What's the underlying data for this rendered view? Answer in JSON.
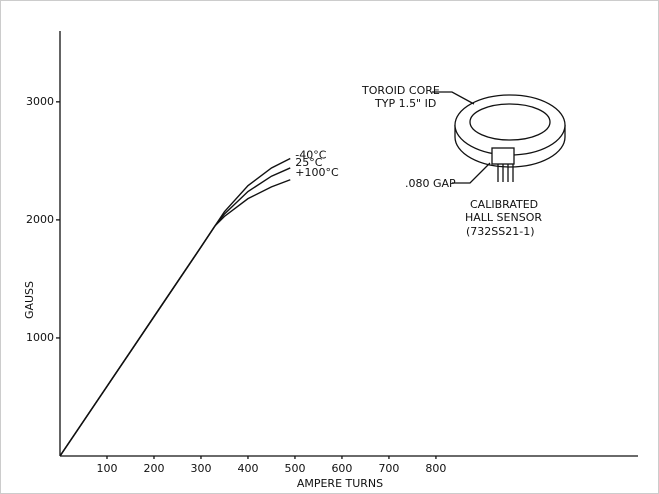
{
  "chart_data": {
    "type": "line",
    "x_label": "AMPERE TURNS",
    "y_label": "GAUSS",
    "x": [
      0,
      100,
      200,
      300,
      330,
      350,
      400,
      450,
      490
    ],
    "series": [
      {
        "name": "-40°C",
        "color": "#111111",
        "values": [
          0,
          590,
          1180,
          1770,
          1950,
          2070,
          2290,
          2440,
          2520
        ]
      },
      {
        "name": "25°C",
        "color": "#111111",
        "values": [
          0,
          590,
          1180,
          1770,
          1950,
          2050,
          2240,
          2370,
          2440
        ]
      },
      {
        "name": "+100°C",
        "color": "#111111",
        "values": [
          0,
          590,
          1180,
          1770,
          1950,
          2030,
          2180,
          2280,
          2340
        ]
      }
    ],
    "xlim": [
      0,
      1230
    ],
    "ylim": [
      0,
      3600
    ],
    "xticks": [
      100,
      200,
      300,
      400,
      500,
      600,
      700,
      800
    ],
    "yticks": [
      1000,
      2000,
      3000
    ],
    "annotations": [
      "TOROID CORE",
      "TYP 1.5\" ID",
      ".080 GAP",
      "CALIBRATED",
      "HALL SENSOR",
      "(732SS21-1)"
    ]
  }
}
